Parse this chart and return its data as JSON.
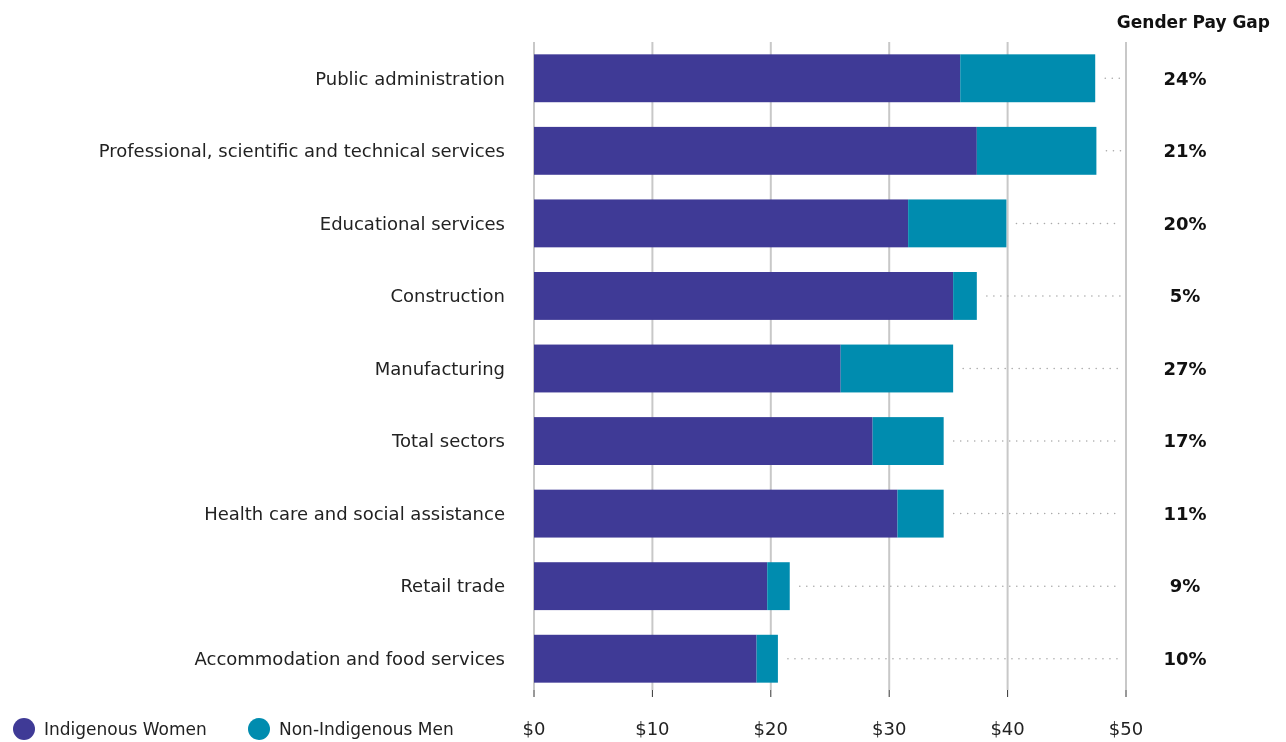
{
  "chart_data": {
    "type": "bar",
    "orientation": "horizontal",
    "stacked": true,
    "categories": [
      "Public administration",
      "Professional, scientific and technical services",
      "Educational services",
      "Construction",
      "Manufacturing",
      "Total sectors",
      "Health care and social assistance",
      "Retail trade",
      "Accommodation and food services"
    ],
    "series": [
      {
        "name": "Indigenous Women",
        "color": "#3f3a96",
        "values": [
          36.0,
          37.4,
          31.6,
          35.4,
          25.9,
          28.6,
          30.7,
          19.7,
          18.8
        ]
      },
      {
        "name": "Non-Indigenous Men",
        "color": "#008caf",
        "values": [
          11.4,
          10.1,
          8.3,
          2.0,
          9.5,
          6.0,
          3.9,
          1.9,
          1.8
        ]
      }
    ],
    "xlim": [
      0,
      50
    ],
    "xticks": [
      {
        "value": 0,
        "label": "$0"
      },
      {
        "value": 10,
        "label": "$10"
      },
      {
        "value": 20,
        "label": "$20"
      },
      {
        "value": 30,
        "label": "$30"
      },
      {
        "value": 40,
        "label": "$40"
      },
      {
        "value": 50,
        "label": "$50"
      }
    ],
    "grid": "x",
    "legend": "bottom left",
    "annotations": [
      "Gender Pay Gap",
      "24%",
      "21%",
      "20%",
      "5%",
      "27%",
      "17%",
      "11%",
      "9%",
      "10%"
    ]
  }
}
